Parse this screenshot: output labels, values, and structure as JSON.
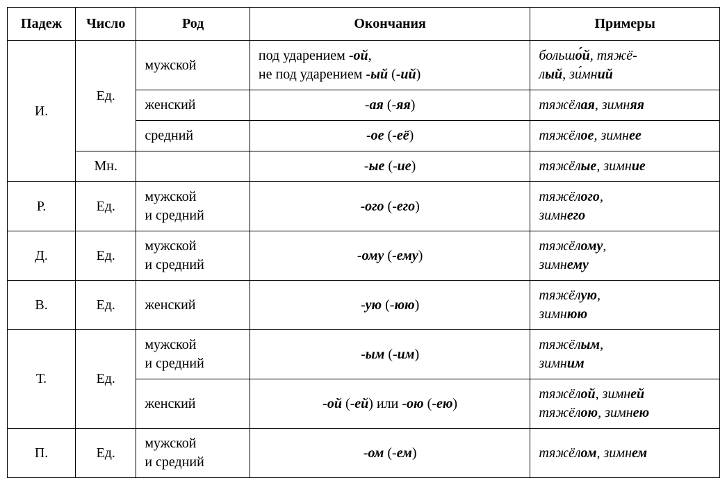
{
  "table": {
    "headers": {
      "case": "Падеж",
      "number": "Число",
      "gender": "Род",
      "endings": "Окончания",
      "examples": "Примеры"
    },
    "colwidths": {
      "case": 90,
      "number": 80,
      "gender": 150,
      "endings": 370,
      "examples": 250
    },
    "font_family": "Georgia/Times",
    "font_size_pt": 15,
    "border_color": "#000000",
    "background_color": "#ffffff",
    "rows": {
      "i": {
        "case": "И.",
        "number_sg": "Ед.",
        "number_pl": "Мн.",
        "masc": {
          "gender": "мужской",
          "endings_html": "под ударением -<span class='ib'>ой</span>,<br>не под ударением -<span class='ib'>ый</span> (-<span class='ib'>ий</span>)",
          "examples_html": "<span class='it'>больш<span class='b'>о́й</span>, тяжё-<br>л<span class='b'>ый</span>, зи́мн<span class='b'>ий</span></span>"
        },
        "fem": {
          "gender": "женский",
          "endings_html": "-<span class='ib'>ая</span> (-<span class='ib'>яя</span>)",
          "examples_html": "<span class='it'>тяжёл<span class='b'>ая</span>, зимн<span class='b'>яя</span></span>"
        },
        "neut": {
          "gender": "средний",
          "endings_html": "-<span class='ib'>ое</span> (-<span class='ib'>её</span>)",
          "examples_html": "<span class='it'>тяжёл<span class='b'>ое</span>, зимн<span class='b'>ее</span></span>"
        },
        "plural": {
          "gender": "",
          "endings_html": "-<span class='ib'>ые</span> (-<span class='ib'>ие</span>)",
          "examples_html": "<span class='it'>тяжёл<span class='b'>ые</span>, зимн<span class='b'>ие</span></span>"
        }
      },
      "r": {
        "case": "Р.",
        "number": "Ед.",
        "gender": "мужской<br>и средний",
        "endings_html": "-<span class='ib'>ого</span> (-<span class='ib'>его</span>)",
        "examples_html": "<span class='it'>тяжёл<span class='b'>ого</span>,<br>зимн<span class='b'>его</span></span>"
      },
      "d": {
        "case": "Д.",
        "number": "Ед.",
        "gender": "мужской<br>и средний",
        "endings_html": "-<span class='ib'>ому</span> (-<span class='ib'>ему</span>)",
        "examples_html": "<span class='it'>тяжёл<span class='b'>ому</span>,<br>зимн<span class='b'>ему</span></span>"
      },
      "v": {
        "case": "В.",
        "number": "Ед.",
        "gender": "женский",
        "endings_html": "-<span class='ib'>ую</span> (-<span class='ib'>юю</span>)",
        "examples_html": "<span class='it'>тяжёл<span class='b'>ую</span>,<br>зимн<span class='b'>юю</span></span>"
      },
      "t": {
        "case": "Т.",
        "number": "Ед.",
        "masc_neut": {
          "gender": "мужской<br>и средний",
          "endings_html": "-<span class='ib'>ым</span> (-<span class='ib'>им</span>)",
          "examples_html": "<span class='it'>тяжёл<span class='b'>ым</span>,<br>зимн<span class='b'>им</span></span>"
        },
        "fem": {
          "gender": "женский",
          "endings_html": "-<span class='ib'>ой</span> (-<span class='ib'>ей</span>) или -<span class='ib'>ою</span> (-<span class='ib'>ею</span>)",
          "examples_html": "<span class='it'>тяжёл<span class='b'>ой</span>, зимн<span class='b'>ей</span><br>тяжёл<span class='b'>ою</span>, зимн<span class='b'>ею</span></span>"
        }
      },
      "p": {
        "case": "П.",
        "number": "Ед.",
        "gender": "мужской<br>и средний",
        "endings_html": "-<span class='ib'>ом</span> (-<span class='ib'>ем</span>)",
        "examples_html": "<span class='it'>тяжёл<span class='b'>ом</span>, зимн<span class='b'>ем</span></span>"
      }
    }
  }
}
